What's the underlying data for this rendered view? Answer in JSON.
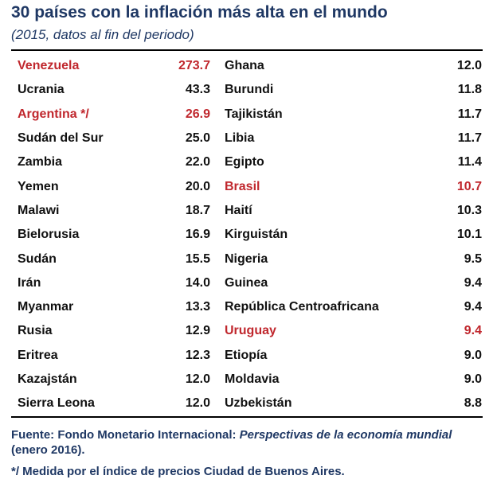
{
  "header": {
    "title": "30 países con la inflación más alta en el mundo",
    "subtitle": "(2015, datos al fin del periodo)"
  },
  "colors": {
    "text": "#111111",
    "highlight": "#c0272d",
    "heading": "#1f3864"
  },
  "chart_data": {
    "type": "table",
    "title": "30 países con la inflación más alta en el mundo",
    "subtitle": "(2015, datos al fin del periodo)",
    "rows": [
      {
        "country": "Venezuela",
        "value": "273.7",
        "highlight": true
      },
      {
        "country": "Ucrania",
        "value": "43.3",
        "highlight": false
      },
      {
        "country": "Argentina */",
        "value": "26.9",
        "highlight": true
      },
      {
        "country": "Sudán del Sur",
        "value": "25.0",
        "highlight": false
      },
      {
        "country": "Zambia",
        "value": "22.0",
        "highlight": false
      },
      {
        "country": "Yemen",
        "value": "20.0",
        "highlight": false
      },
      {
        "country": "Malawi",
        "value": "18.7",
        "highlight": false
      },
      {
        "country": "Bielorusia",
        "value": "16.9",
        "highlight": false
      },
      {
        "country": "Sudán",
        "value": "15.5",
        "highlight": false
      },
      {
        "country": "Irán",
        "value": "14.0",
        "highlight": false
      },
      {
        "country": "Myanmar",
        "value": "13.3",
        "highlight": false
      },
      {
        "country": "Rusia",
        "value": "12.9",
        "highlight": false
      },
      {
        "country": "Eritrea",
        "value": "12.3",
        "highlight": false
      },
      {
        "country": "Kazajstán",
        "value": "12.0",
        "highlight": false
      },
      {
        "country": "Sierra Leona",
        "value": "12.0",
        "highlight": false
      },
      {
        "country": "Ghana",
        "value": "12.0",
        "highlight": false
      },
      {
        "country": "Burundi",
        "value": "11.8",
        "highlight": false
      },
      {
        "country": "Tajikistán",
        "value": "11.7",
        "highlight": false
      },
      {
        "country": "Libia",
        "value": "11.7",
        "highlight": false
      },
      {
        "country": "Egipto",
        "value": "11.4",
        "highlight": false
      },
      {
        "country": "Brasil",
        "value": "10.7",
        "highlight": true
      },
      {
        "country": "Haití",
        "value": "10.3",
        "highlight": false
      },
      {
        "country": "Kirguistán",
        "value": "10.1",
        "highlight": false
      },
      {
        "country": "Nigeria",
        "value": "9.5",
        "highlight": false
      },
      {
        "country": "Guinea",
        "value": "9.4",
        "highlight": false
      },
      {
        "country": "República Centroafricana",
        "value": "9.4",
        "highlight": false
      },
      {
        "country": "Uruguay",
        "value": "9.4",
        "highlight": true
      },
      {
        "country": "Etiopía",
        "value": "9.0",
        "highlight": false
      },
      {
        "country": "Moldavia",
        "value": "9.0",
        "highlight": false
      },
      {
        "country": "Uzbekistán",
        "value": "8.8",
        "highlight": false
      }
    ]
  },
  "footer": {
    "source_prefix": "Fuente: Fondo Monetario Internacional: ",
    "source_italic": "Perspectivas de la economía mundial",
    "source_suffix": " (enero 2016).",
    "note": "*/ Medida por el índice de precios Ciudad de Buenos Aires."
  }
}
